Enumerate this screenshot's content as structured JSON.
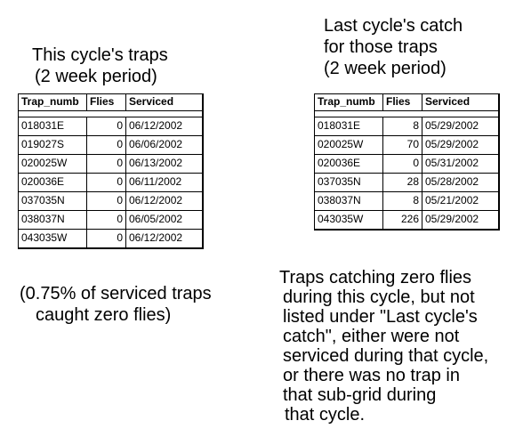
{
  "left_title": [
    "This cycle's traps",
    "(2 week period)"
  ],
  "right_title": [
    "Last cycle's catch",
    "for those traps",
    "(2 week period)"
  ],
  "columns": [
    "Trap_numb",
    "Flies",
    "Serviced"
  ],
  "this_cycle_rows": [
    [
      "018031E",
      "0",
      "06/12/2002"
    ],
    [
      "019027S",
      "0",
      "06/06/2002"
    ],
    [
      "020025W",
      "0",
      "06/13/2002"
    ],
    [
      "020036E",
      "0",
      "06/11/2002"
    ],
    [
      "037035N",
      "0",
      "06/12/2002"
    ],
    [
      "038037N",
      "0",
      "06/05/2002"
    ],
    [
      "043035W",
      "0",
      "06/12/2002"
    ]
  ],
  "last_cycle_rows": [
    [
      "018031E",
      "8",
      "05/29/2002"
    ],
    [
      "020025W",
      "70",
      "05/29/2002"
    ],
    [
      "020036E",
      "0",
      "05/31/2002"
    ],
    [
      "037035N",
      "28",
      "05/28/2002"
    ],
    [
      "038037N",
      "8",
      "05/21/2002"
    ],
    [
      "043035W",
      "226",
      "05/29/2002"
    ]
  ],
  "pct_note": [
    "(0.75% of serviced traps",
    "caught zero flies)"
  ],
  "explain_note": [
    "Traps catching zero flies",
    "during this cycle, but not",
    "listed under \"Last cycle's",
    "catch\", either were not",
    "serviced during that cycle,",
    "or there was no trap in",
    "that sub-grid during",
    "that cycle."
  ]
}
